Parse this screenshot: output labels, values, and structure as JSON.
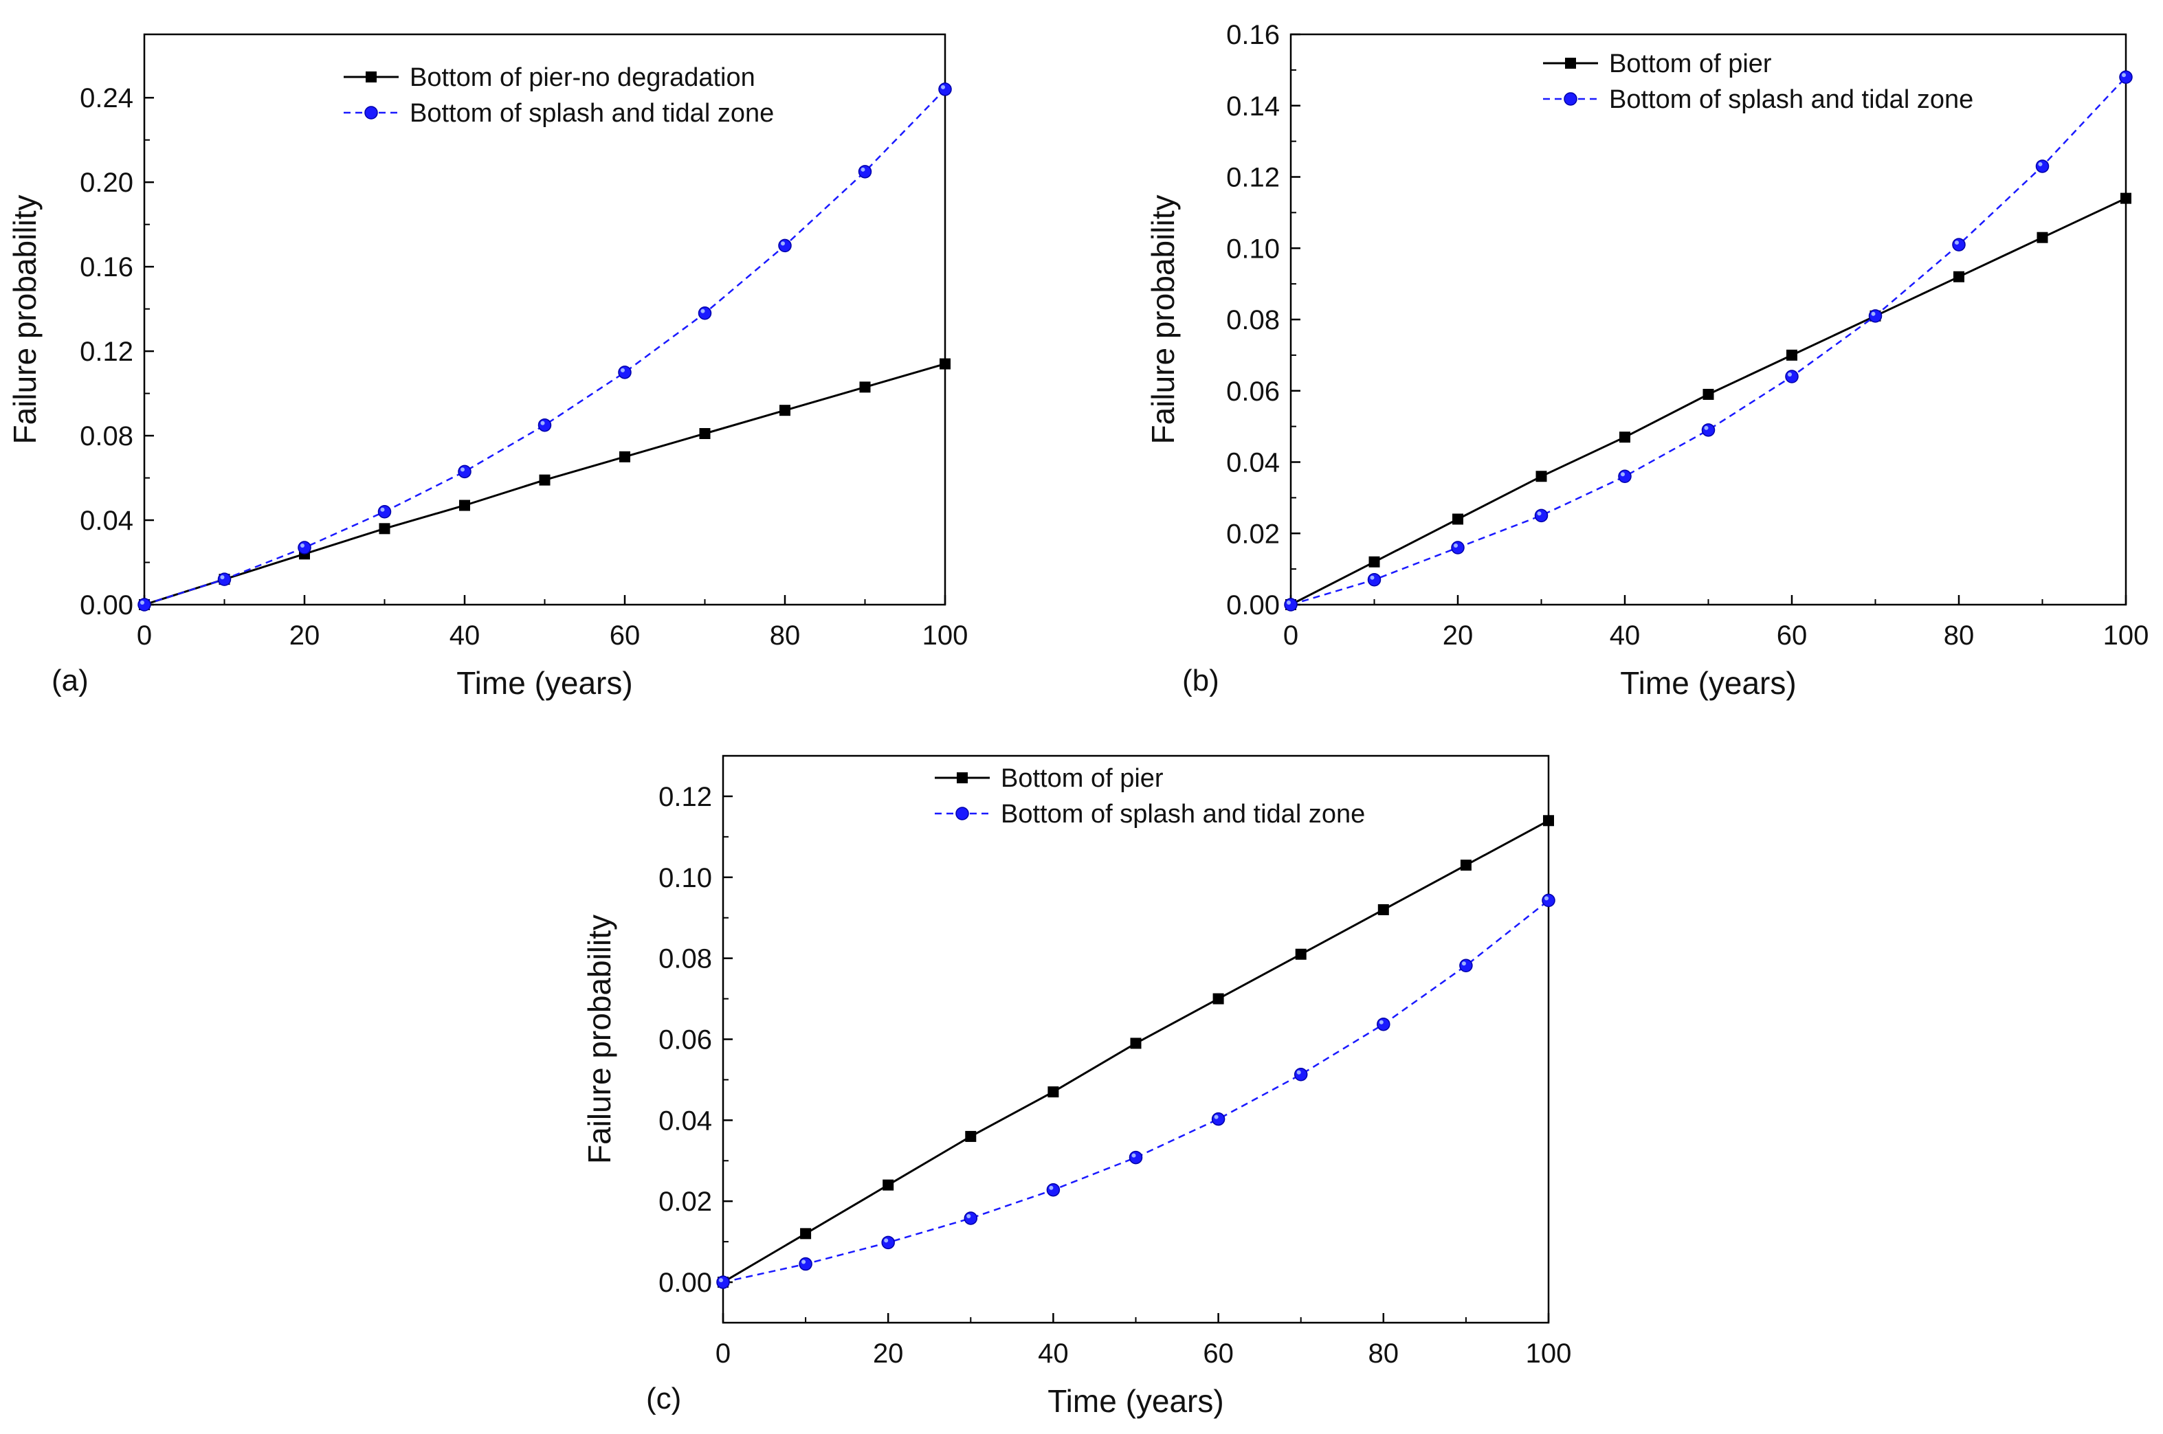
{
  "chart_data": [
    {
      "type": "line",
      "panel_label": "(a)",
      "xlabel": "Time (years)",
      "ylabel": "Failure probability",
      "xlim": [
        0,
        100
      ],
      "ylim": [
        0,
        0.27
      ],
      "xticks": [
        0,
        20,
        40,
        60,
        80,
        100
      ],
      "yticks": [
        0.0,
        0.04,
        0.08,
        0.12,
        0.16,
        0.2,
        0.24
      ],
      "ytick_labels": [
        "0.00",
        "0.04",
        "0.08",
        "0.12",
        "0.16",
        "0.20",
        "0.24"
      ],
      "legend_position": "top-center",
      "x": [
        0,
        10,
        20,
        30,
        40,
        50,
        60,
        70,
        80,
        90,
        100
      ],
      "series": [
        {
          "name": "Bottom of pier-no degradation",
          "color": "#000000",
          "marker": "square",
          "line": "solid",
          "values": [
            0.0,
            0.012,
            0.024,
            0.036,
            0.047,
            0.059,
            0.07,
            0.081,
            0.092,
            0.103,
            0.114
          ]
        },
        {
          "name": "Bottom of splash and tidal zone",
          "color": "#1a1aff",
          "marker": "circle",
          "line": "dashed",
          "values": [
            0.0,
            0.012,
            0.027,
            0.044,
            0.063,
            0.085,
            0.11,
            0.138,
            0.17,
            0.205,
            0.244
          ]
        }
      ]
    },
    {
      "type": "line",
      "panel_label": "(b)",
      "xlabel": "Time (years)",
      "ylabel": "Failure probability",
      "xlim": [
        0,
        100
      ],
      "ylim": [
        0,
        0.16
      ],
      "xticks": [
        0,
        20,
        40,
        60,
        80,
        100
      ],
      "yticks": [
        0.0,
        0.02,
        0.04,
        0.06,
        0.08,
        0.1,
        0.12,
        0.14,
        0.16
      ],
      "ytick_labels": [
        "0.00",
        "0.02",
        "0.04",
        "0.06",
        "0.08",
        "0.10",
        "0.12",
        "0.14",
        "0.16"
      ],
      "legend_position": "top-center",
      "x": [
        0,
        10,
        20,
        30,
        40,
        50,
        60,
        70,
        80,
        90,
        100
      ],
      "series": [
        {
          "name": "Bottom of pier",
          "color": "#000000",
          "marker": "square",
          "line": "solid",
          "values": [
            0.0,
            0.012,
            0.024,
            0.036,
            0.047,
            0.059,
            0.07,
            0.081,
            0.092,
            0.103,
            0.114
          ]
        },
        {
          "name": "Bottom of splash and tidal zone",
          "color": "#1a1aff",
          "marker": "circle",
          "line": "dashed",
          "values": [
            0.0,
            0.007,
            0.016,
            0.025,
            0.036,
            0.049,
            0.064,
            0.081,
            0.101,
            0.123,
            0.148
          ]
        }
      ]
    },
    {
      "type": "line",
      "panel_label": "(c)",
      "xlabel": "Time (years)",
      "ylabel": "Failure probability",
      "xlim": [
        0,
        100
      ],
      "ylim": [
        -0.01,
        0.13
      ],
      "xticks": [
        0,
        20,
        40,
        60,
        80,
        100
      ],
      "yticks": [
        0.0,
        0.02,
        0.04,
        0.06,
        0.08,
        0.1,
        0.12
      ],
      "ytick_labels": [
        "0.00",
        "0.02",
        "0.04",
        "0.06",
        "0.08",
        "0.10",
        "0.12"
      ],
      "legend_position": "top-center",
      "x": [
        0,
        10,
        20,
        30,
        40,
        50,
        60,
        70,
        80,
        90,
        100
      ],
      "series": [
        {
          "name": "Bottom of pier",
          "color": "#000000",
          "marker": "square",
          "line": "solid",
          "values": [
            0.0,
            0.012,
            0.024,
            0.036,
            0.047,
            0.059,
            0.07,
            0.081,
            0.092,
            0.103,
            0.114
          ]
        },
        {
          "name": "Bottom of splash and tidal zone",
          "color": "#1a1aff",
          "marker": "circle",
          "line": "dashed",
          "values": [
            0.0,
            0.0045,
            0.0098,
            0.0158,
            0.0228,
            0.0308,
            0.0403,
            0.0513,
            0.0637,
            0.0782,
            0.0943
          ]
        }
      ]
    }
  ]
}
